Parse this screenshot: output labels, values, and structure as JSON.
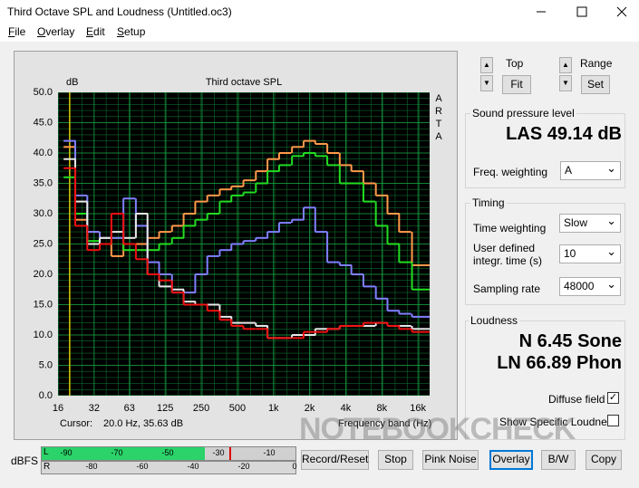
{
  "window": {
    "title": "Third Octave SPL and Loudness (Untitled.oc3)"
  },
  "menu": [
    "File",
    "Overlay",
    "Edit",
    "Setup"
  ],
  "chart_data": {
    "type": "line",
    "step": true,
    "title": "Third octave SPL",
    "y_label": "dB",
    "side_label": [
      "A",
      "R",
      "T",
      "A"
    ],
    "x_label": "Frequency band (Hz)",
    "cursor_label": "Cursor:",
    "cursor_value": "20.0 Hz, 35.63 dB",
    "cursor_x": 20,
    "cursor_color": "#d8c800",
    "xscale": "log",
    "xlim": [
      16,
      20000
    ],
    "xticks": [
      16,
      32,
      63,
      125,
      250,
      500,
      {
        "value": 1000,
        "label": "1k"
      },
      {
        "value": 2000,
        "label": "2k"
      },
      {
        "value": 4000,
        "label": "4k"
      },
      {
        "value": 8000,
        "label": "8k"
      },
      {
        "value": 16000,
        "label": "16k"
      }
    ],
    "ylim": [
      0,
      50
    ],
    "yticks": [
      {
        "value": 0,
        "label": "0.0"
      },
      {
        "value": 5,
        "label": "5.0"
      },
      {
        "value": 10,
        "label": "10.0"
      },
      {
        "value": 15,
        "label": "15.0"
      },
      {
        "value": 20,
        "label": "20.0"
      },
      {
        "value": 25,
        "label": "25.0"
      },
      {
        "value": 30,
        "label": "30.0"
      },
      {
        "value": 35,
        "label": "35.0"
      },
      {
        "value": 40,
        "label": "40.0"
      },
      {
        "value": 45,
        "label": "45.0"
      },
      {
        "value": 50,
        "label": "50.0"
      }
    ],
    "grid": true,
    "grid_color": "#0b6b2c",
    "background": "#000000",
    "x": [
      20,
      25,
      31.5,
      40,
      50,
      63,
      80,
      100,
      125,
      160,
      200,
      250,
      315,
      400,
      500,
      630,
      800,
      1000,
      1250,
      1600,
      2000,
      2500,
      3150,
      4000,
      5000,
      6300,
      8000,
      10000,
      12500,
      16000,
      20000
    ],
    "series": [
      {
        "color": "#ff9a4a",
        "values": [
          41,
          29,
          27,
          26,
          23,
          25,
          25,
          26,
          27,
          28,
          30,
          32,
          33,
          34,
          34.5,
          35.5,
          37,
          39,
          40,
          41,
          42,
          41.5,
          40,
          38,
          37,
          35,
          33,
          30,
          27,
          21.5,
          21.5
        ]
      },
      {
        "color": "#22dd22",
        "values": [
          36,
          30,
          25.5,
          25,
          26,
          24,
          24,
          24,
          25,
          26,
          28,
          29,
          30,
          32,
          33,
          33.5,
          35,
          37,
          38,
          39.5,
          40,
          39.5,
          38,
          35,
          35,
          32,
          28,
          25,
          22,
          17.5,
          17.5
        ]
      },
      {
        "color": "#8080ff",
        "values": [
          42,
          33,
          27,
          26,
          26,
          32.5,
          28,
          22,
          20,
          17,
          17,
          20,
          23,
          24,
          25,
          25.5,
          26,
          27,
          28.5,
          29,
          31,
          27,
          22,
          21.5,
          20,
          18,
          16,
          14,
          13.5,
          13,
          13
        ]
      },
      {
        "color": "#e8e8e8",
        "values": [
          39,
          32,
          25,
          26,
          27,
          26,
          30,
          20,
          18,
          17.5,
          15.5,
          15,
          15,
          13,
          12,
          12,
          11.5,
          9.5,
          9.5,
          10,
          10,
          11,
          11,
          11.5,
          11.5,
          11.5,
          12,
          11.5,
          11.5,
          11,
          11
        ]
      },
      {
        "color": "#ee1111",
        "values": [
          37.5,
          28,
          24,
          25,
          30,
          25,
          22.5,
          20,
          19,
          17,
          15,
          15,
          14,
          12.5,
          11.5,
          11,
          11,
          9.5,
          9.5,
          9.5,
          10.5,
          10.5,
          11,
          11.5,
          11.5,
          12,
          12,
          11.5,
          11,
          10.5,
          10.5
        ]
      }
    ]
  },
  "controls": {
    "top_label": "Top",
    "fit": "Fit",
    "range_label": "Range",
    "set": "Set"
  },
  "spl": {
    "title": "Sound pressure level",
    "value": "LAS 49.14 dB",
    "freq_weighting_label": "Freq. weighting",
    "freq_weighting": "A"
  },
  "timing": {
    "title": "Timing",
    "time_weighting_label": "Time weighting",
    "time_weighting": "Slow",
    "integr_label": [
      "User defined",
      "integr. time (s)"
    ],
    "integr_time": 10,
    "sampling_rate_label": "Sampling rate",
    "sampling_rate": 48000
  },
  "loudness": {
    "title": "Loudness",
    "n": "N 6.45 Sone",
    "ln": "LN 66.89 Phon",
    "diffuse_label": "Diffuse field",
    "diffuse": true,
    "specific_label": "Show Specific Loudness",
    "specific": false
  },
  "meter": {
    "label": "dBFS",
    "channels": [
      "L",
      "R"
    ],
    "top_scale": [
      -90,
      -70,
      -50,
      -30,
      -10
    ],
    "bottom_scale": [
      -80,
      -60,
      -40,
      -20,
      0
    ]
  },
  "buttons": [
    "Record/Reset",
    "Stop",
    "Pink Noise",
    "Overlay",
    "B/W",
    "Copy"
  ],
  "watermark": "NOTEBOOKCHECK"
}
